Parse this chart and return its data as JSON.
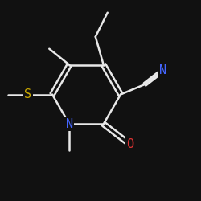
{
  "background_color": "#111111",
  "bond_color": "#e8e8e8",
  "atom_colors": {
    "N": "#4466ff",
    "O": "#dd3333",
    "S": "#ccaa00",
    "C": "#e8e8e8"
  },
  "figsize": [
    2.5,
    2.5
  ],
  "dpi": 100,
  "lw": 1.8,
  "off": 0.011
}
